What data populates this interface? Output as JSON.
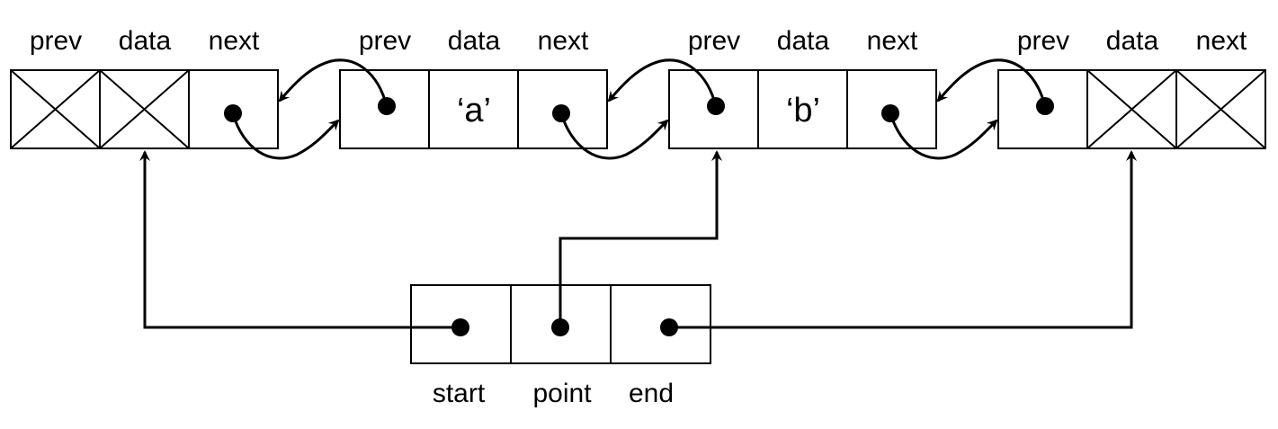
{
  "colors": {
    "stroke": "#000000",
    "background": "#ffffff"
  },
  "nodes": [
    {
      "fields": {
        "prev": "prev",
        "data": "data",
        "next": "next"
      },
      "data_value": "",
      "prev_null": true,
      "data_null": true,
      "next_null": false
    },
    {
      "fields": {
        "prev": "prev",
        "data": "data",
        "next": "next"
      },
      "data_value": "‘a’",
      "prev_null": false,
      "data_null": false,
      "next_null": false
    },
    {
      "fields": {
        "prev": "prev",
        "data": "data",
        "next": "next"
      },
      "data_value": "‘b’",
      "prev_null": false,
      "data_null": false,
      "next_null": false
    },
    {
      "fields": {
        "prev": "prev",
        "data": "data",
        "next": "next"
      },
      "data_value": "",
      "prev_null": false,
      "data_null": true,
      "next_null": true
    }
  ],
  "control": {
    "fields": {
      "start": "start",
      "point": "point",
      "end": "end"
    }
  },
  "links": [
    {
      "from": "node0.next",
      "to": "node1",
      "kind": "next"
    },
    {
      "from": "node1.prev",
      "to": "node0",
      "kind": "prev"
    },
    {
      "from": "node1.next",
      "to": "node2",
      "kind": "next"
    },
    {
      "from": "node2.prev",
      "to": "node1",
      "kind": "prev"
    },
    {
      "from": "node2.next",
      "to": "node3",
      "kind": "next"
    },
    {
      "from": "node3.prev",
      "to": "node2",
      "kind": "prev"
    },
    {
      "from": "control.start",
      "to": "node0.data",
      "kind": "pointer"
    },
    {
      "from": "control.point",
      "to": "node2.prev",
      "kind": "pointer"
    },
    {
      "from": "control.end",
      "to": "node3.data",
      "kind": "pointer"
    }
  ]
}
